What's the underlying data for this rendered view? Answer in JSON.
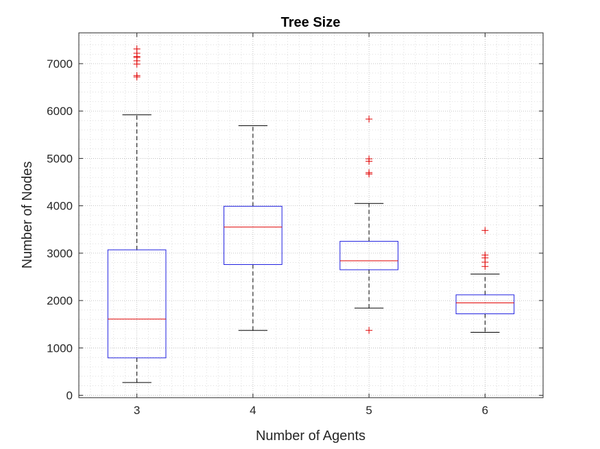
{
  "colors": {
    "box": "#1f1fe0",
    "median": "#e00000",
    "whisker": "#000000",
    "outlier": "#e00000",
    "axes": "#262626",
    "grid": "#c8c8c8"
  },
  "chart_data": {
    "type": "box",
    "title": "Tree Size",
    "xlabel": "Number of Agents",
    "ylabel": "Number of Nodes",
    "categories": [
      "3",
      "4",
      "5",
      "6"
    ],
    "xlim": [
      2.5,
      6.5
    ],
    "ylim": [
      -50,
      7650
    ],
    "yticks": [
      0,
      1000,
      2000,
      3000,
      4000,
      5000,
      6000,
      7000
    ],
    "ytick_labels": [
      "0",
      "1000",
      "2000",
      "3000",
      "4000",
      "5000",
      "6000",
      "7000"
    ],
    "grid": true,
    "minor_grid": true,
    "boxes": [
      {
        "category": "3",
        "whisker_low": 270,
        "q1": 790,
        "median": 1610,
        "q3": 3070,
        "whisker_high": 5920,
        "outliers": [
          6720,
          6750,
          6990,
          7060,
          7130,
          7150,
          7220,
          7310
        ]
      },
      {
        "category": "4",
        "whisker_low": 1370,
        "q1": 2760,
        "median": 3550,
        "q3": 3990,
        "whisker_high": 5690,
        "outliers": []
      },
      {
        "category": "5",
        "whisker_low": 1840,
        "q1": 2650,
        "median": 2840,
        "q3": 3250,
        "whisker_high": 4050,
        "outliers": [
          1370,
          4670,
          4700,
          4940,
          4990,
          5830
        ]
      },
      {
        "category": "6",
        "whisker_low": 1330,
        "q1": 1720,
        "median": 1950,
        "q3": 2120,
        "whisker_high": 2560,
        "outliers": [
          2720,
          2810,
          2900,
          2960,
          3480
        ]
      }
    ]
  }
}
